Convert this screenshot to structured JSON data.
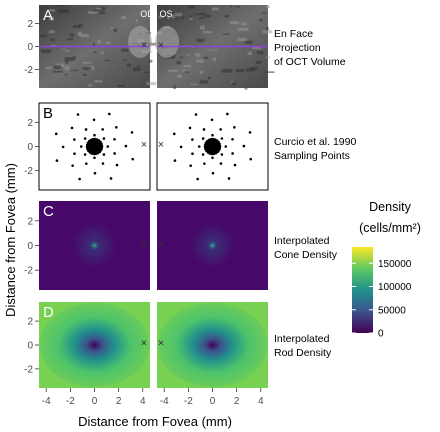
{
  "eyes": {
    "left": "OD",
    "right": "OS"
  },
  "rows": [
    {
      "letter": "A",
      "label_lines": [
        "En Face",
        "Projection",
        "of OCT Volume"
      ]
    },
    {
      "letter": "B",
      "label_lines": [
        "Curcio et al. 1990",
        "Sampling Points"
      ]
    },
    {
      "letter": "C",
      "label_lines": [
        "Interpolated",
        "Cone Density"
      ]
    },
    {
      "letter": "D",
      "label_lines": [
        "Interpolated",
        "Rod Density"
      ]
    }
  ],
  "axes": {
    "y_title": "Distance from Fovea (mm)",
    "x_title": "Distance from Fovea (mm)",
    "y_ticks": [
      "2",
      "0",
      "-2"
    ],
    "x_ticks": [
      "-4",
      "-2",
      "0",
      "2",
      "4"
    ]
  },
  "legend": {
    "title_line1": "Density",
    "title_line2": "(cells/mm²)",
    "ticks": [
      "150000",
      "100000",
      "50000",
      "0"
    ],
    "tick_values": [
      150000,
      100000,
      50000,
      0
    ],
    "max": 185000,
    "colors": [
      "#440154",
      "#3b528b",
      "#21918c",
      "#5ec962",
      "#fde725"
    ]
  },
  "markers": {
    "optic_disc": "×"
  }
}
